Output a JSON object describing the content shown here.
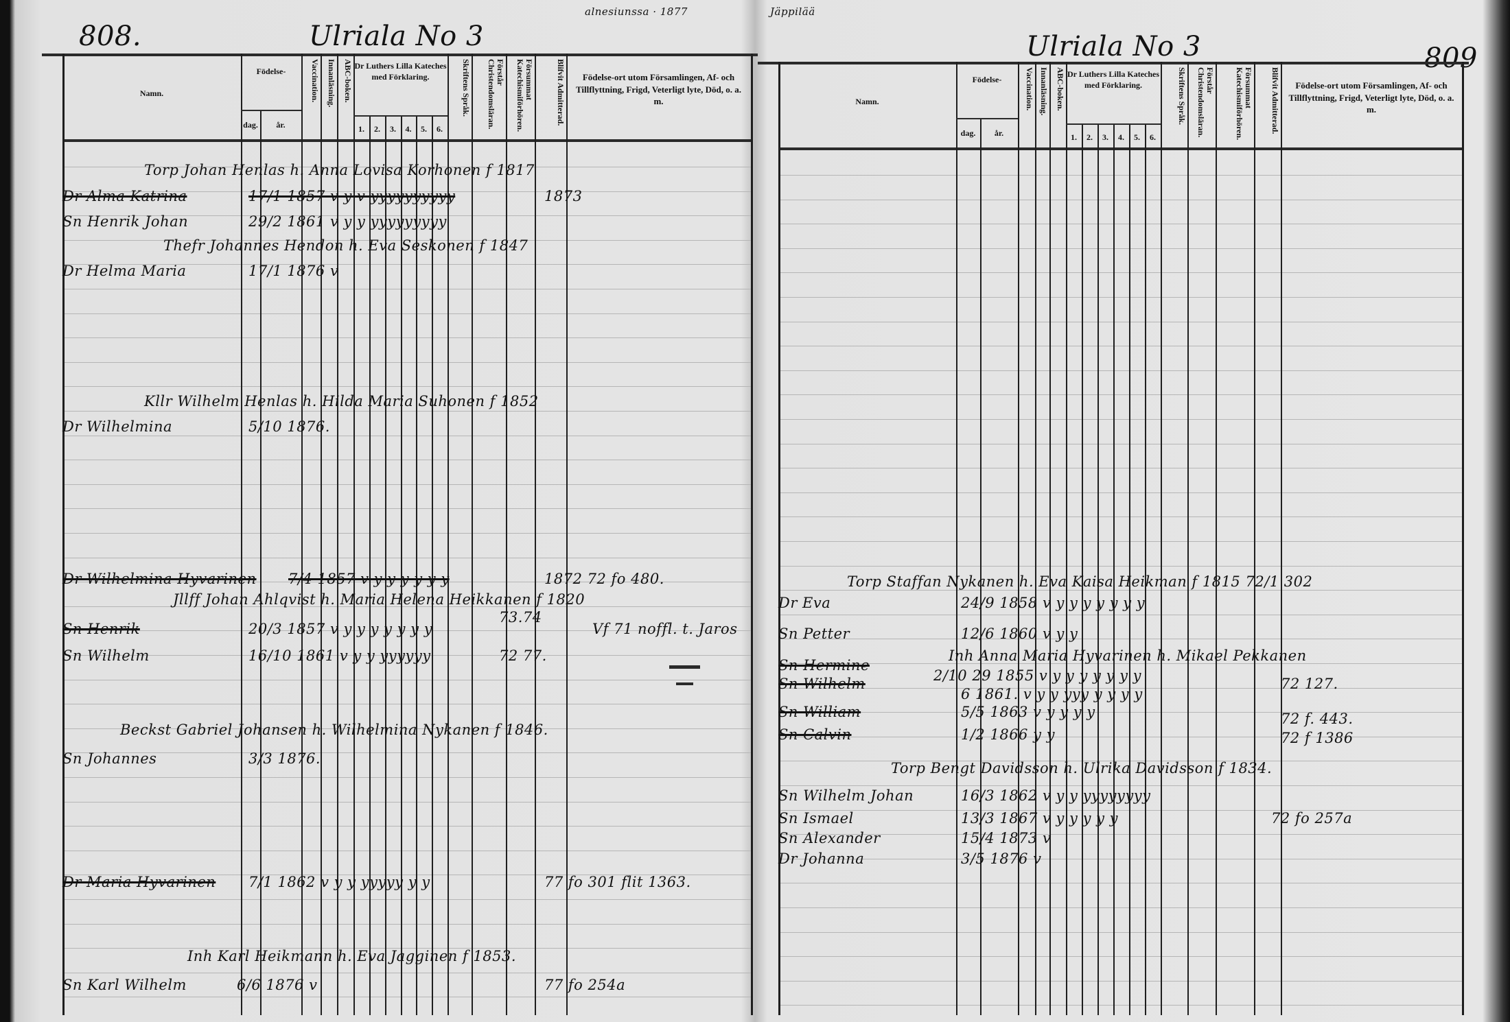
{
  "document": {
    "left_page_number": "808.",
    "right_page_number": "809",
    "left_title": "Ulriala No 3",
    "right_title": "Ulriala No 3",
    "top_note_left": "alnesiunssa · 1877",
    "top_note_right": "Jäppilää"
  },
  "columns": {
    "namn": "Namn.",
    "fodelse": "Födelse-",
    "dag": "dag.",
    "ar": "år.",
    "vaccination": "Vaccination.",
    "innanlasning": "Innanläsning.",
    "abc": "ABC-boken.",
    "katekes": "Dr Luthers Lilla Kateches med Förklaring.",
    "kat_nums": [
      "1.",
      "2.",
      "3.",
      "4.",
      "5.",
      "6."
    ],
    "skriftens": "Skriftens Språk.",
    "forstar": "Förstår Christendomsläran.",
    "forsummat": "Försummat Katechismiförhören.",
    "blifvit": "Blifvit Admitterad.",
    "fodelseort": "Födelse-ort utom Församlingen, Af- och Tillflyttning, Frigd, Veterligt lyte, Död, o. a. m."
  },
  "left_entries": [
    {
      "text": "Torp Johan Henlas h. Anna Lovisa Korhonen f 1817"
    },
    {
      "text": "Dr Alma Katrina",
      "struck": true
    },
    {
      "text": "17/1 1857 v y v yyyyyyyyyy",
      "struck": true
    },
    {
      "text": "1873"
    },
    {
      "text": "Sn Henrik Johan"
    },
    {
      "text": "29/2 1861 v y y yyyyyyyyy"
    },
    {
      "text": "Thefr Johannes Hendon h. Eva Seskonen f 1847"
    },
    {
      "text": "Dr Helma Maria"
    },
    {
      "text": "17/1 1876 v"
    },
    {
      "text": "Kllr Wilhelm Henlas h. Hilda Maria Suhonen f 1852"
    },
    {
      "text": "Dr Wilhelmina"
    },
    {
      "text": "5/10 1876."
    },
    {
      "text": "Dr Wilhelmina Hyvarinen",
      "struck": true
    },
    {
      "text": "7/4 1857 v y y y y y y",
      "struck": true
    },
    {
      "text": "1872 72 fo 480."
    },
    {
      "text": "Jllff Johan Ahlqvist h. Maria Helena Heikkanen f 1820"
    },
    {
      "text": "Sn Henrik",
      "struck": true
    },
    {
      "text": "20/3 1857 v y y y y y y y"
    },
    {
      "text": "73.74"
    },
    {
      "text": "Vf 71 noffl. t. Jaros"
    },
    {
      "text": "Sn Wilhelm"
    },
    {
      "text": "16/10 1861 v y y yyyyyy"
    },
    {
      "text": "72 77."
    },
    {
      "text": "Beckst Gabriel Johansen h. Wilhelmina Nykanen f 1846."
    },
    {
      "text": "Sn Johannes"
    },
    {
      "text": "3/3 1876."
    },
    {
      "text": "Dr Maria Hyvarinen",
      "struck": true
    },
    {
      "text": "7/1 1862 v y y yyyyy y y"
    },
    {
      "text": "77 fo 301 flit 1363."
    },
    {
      "text": "Inh Karl Heikmann h. Eva Jagginen f 1853."
    },
    {
      "text": "Sn Karl Wilhelm"
    },
    {
      "text": "6/6 1876 v"
    },
    {
      "text": "77 fo 254a"
    }
  ],
  "right_entries": [
    {
      "text": "Torp Staffan Nykanen h. Eva Kaisa Heikman f 1815 72/1 302"
    },
    {
      "text": "Dr Eva"
    },
    {
      "text": "24/9 1858 v y y y y y y y"
    },
    {
      "text": "Sn Petter"
    },
    {
      "text": "12/6 1860 v y y"
    },
    {
      "text": "Inh Anna Maria Hyvarinen h. Mikael Pekkanen"
    },
    {
      "text": "Sn Hermine",
      "struck": true
    },
    {
      "text": "2/10 29 1855 v y y y y y y y"
    },
    {
      "text": "Sn Wilhelm",
      "struck": true
    },
    {
      "text": "6 1861. v y y yyy y y y y"
    },
    {
      "text": "72 127."
    },
    {
      "text": "Sn William",
      "struck": true
    },
    {
      "text": "5/5 1863 v y y y y"
    },
    {
      "text": "Sn Calvin",
      "struck": true
    },
    {
      "text": "1/2 1866 y y"
    },
    {
      "text": "72 f. 443."
    },
    {
      "text": "72 f 1386"
    },
    {
      "text": "Torp Bengt Davidsson h. Ulrika Davidsson f 1834."
    },
    {
      "text": "Sn Wilhelm Johan"
    },
    {
      "text": "16/3 1862 v y y yyyyyyyy"
    },
    {
      "text": "Sn Ismael"
    },
    {
      "text": "13/3 1867 v y y y y y"
    },
    {
      "text": "72 fo 257a"
    },
    {
      "text": "Sn Alexander"
    },
    {
      "text": "15/4 1873 v"
    },
    {
      "text": "Dr Johanna"
    },
    {
      "text": "3/5 1876 v"
    }
  ]
}
